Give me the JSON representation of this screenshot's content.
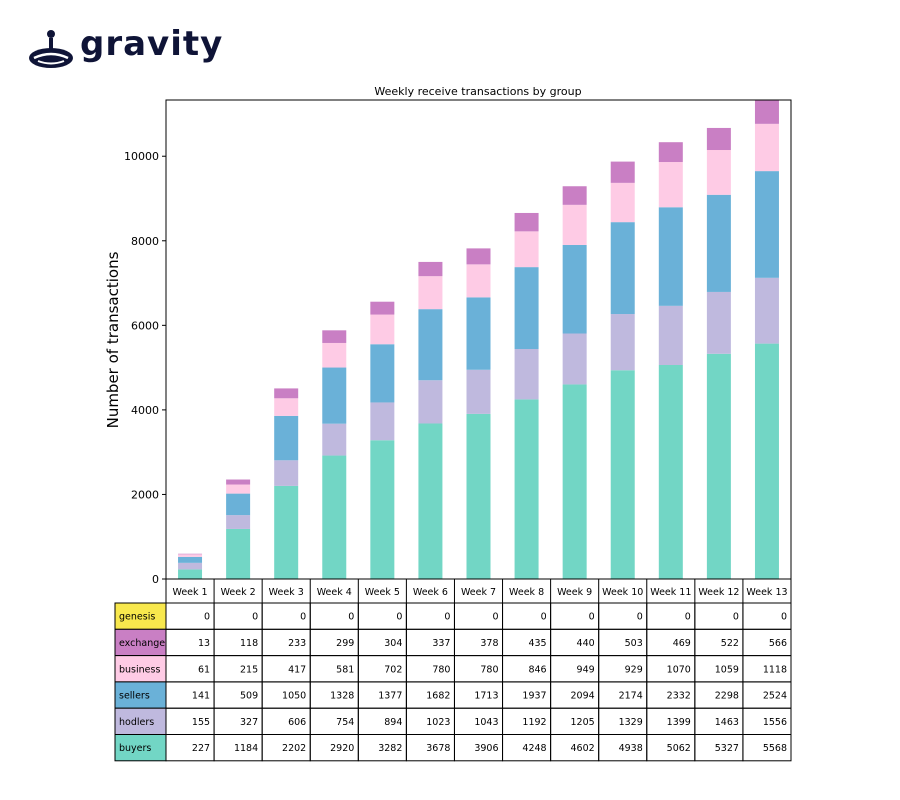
{
  "brand": {
    "name": "gravity"
  },
  "chart_data": {
    "type": "bar",
    "stacked": true,
    "title": "Weekly receive transactions by group",
    "xlabel": "",
    "ylabel": "Number of transactions",
    "ylim": [
      0,
      11330
    ],
    "yticks": [
      0,
      2000,
      4000,
      6000,
      8000,
      10000
    ],
    "grid": false,
    "categories": [
      "Week 1",
      "Week 2",
      "Week 3",
      "Week 4",
      "Week 5",
      "Week 6",
      "Week 7",
      "Week 8",
      "Week 9",
      "Week 10",
      "Week 11",
      "Week 12",
      "Week 13"
    ],
    "series": [
      {
        "name": "buyers",
        "color": "#72d6c5",
        "values": [
          227,
          1184,
          2202,
          2920,
          3282,
          3678,
          3906,
          4248,
          4602,
          4938,
          5062,
          5327,
          5568
        ]
      },
      {
        "name": "hodlers",
        "color": "#bfb9de",
        "values": [
          155,
          327,
          606,
          754,
          894,
          1023,
          1043,
          1192,
          1205,
          1329,
          1399,
          1463,
          1556
        ]
      },
      {
        "name": "sellers",
        "color": "#6ab1d8",
        "values": [
          141,
          509,
          1050,
          1328,
          1377,
          1682,
          1713,
          1937,
          2094,
          2174,
          2332,
          2298,
          2524
        ]
      },
      {
        "name": "business",
        "color": "#fecbe5",
        "values": [
          61,
          215,
          417,
          581,
          702,
          780,
          780,
          846,
          949,
          929,
          1070,
          1059,
          1118
        ]
      },
      {
        "name": "exchange",
        "color": "#c97fc4",
        "values": [
          13,
          118,
          233,
          299,
          304,
          337,
          378,
          435,
          440,
          503,
          469,
          522,
          566
        ]
      },
      {
        "name": "genesis",
        "color": "#f8e84d",
        "values": [
          0,
          0,
          0,
          0,
          0,
          0,
          0,
          0,
          0,
          0,
          0,
          0,
          0
        ]
      }
    ],
    "table_row_order": [
      "genesis",
      "exchange",
      "business",
      "sellers",
      "hodlers",
      "buyers"
    ]
  }
}
